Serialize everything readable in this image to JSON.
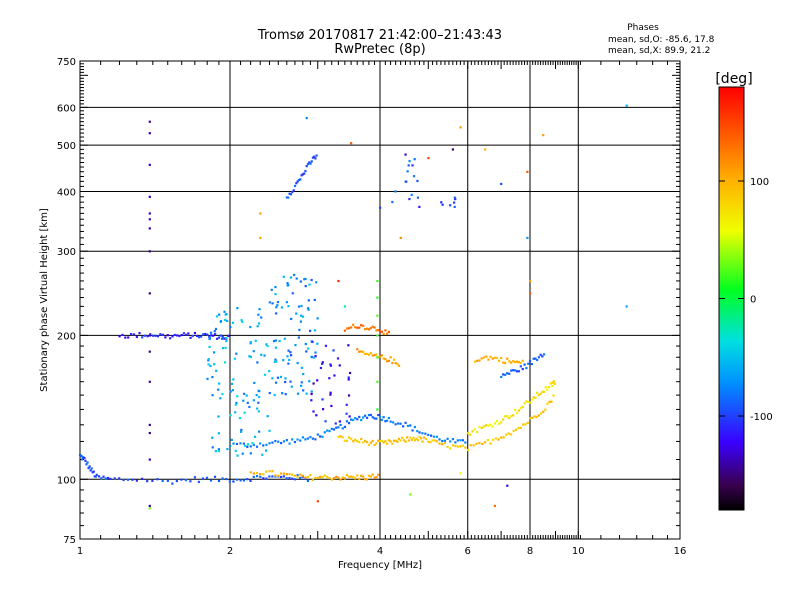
{
  "chart_data": {
    "type": "scatter",
    "title": "Tromsø 20170817 21:42:00–21:43:43",
    "subtitle": "RwPretec (8p)",
    "xlabel": "Frequency [MHz]",
    "ylabel": "Stationary phase Virtual Height [km]",
    "x_scale": "log",
    "y_scale": "log",
    "xlim": [
      1,
      16
    ],
    "ylim": [
      75,
      750
    ],
    "x_ticks": [
      1,
      2,
      4,
      6,
      8,
      10,
      16
    ],
    "y_ticks": [
      75,
      100,
      200,
      300,
      400,
      500,
      600,
      750
    ],
    "grid": true,
    "phase_stats": {
      "title": "Phases",
      "o_line": "mean, sd,O: -85.6, 17.8",
      "x_line": "mean, sd,X:  89.9, 21.2"
    },
    "colorbar": {
      "label": "[deg]",
      "range": [
        -180,
        180
      ],
      "ticks": [
        100,
        0,
        -100
      ],
      "colormap": "rainbow"
    },
    "traces": [
      {
        "f": [
          1.0,
          1.02,
          1.05,
          1.08,
          1.15,
          1.3,
          1.5,
          1.7,
          1.9,
          2.1,
          2.3,
          2.5,
          2.7,
          2.9
        ],
        "h": [
          112,
          110,
          105,
          101,
          100,
          100,
          99,
          100,
          100,
          100,
          101,
          101,
          101,
          100
        ],
        "phase": -95
      },
      {
        "f": [
          1.2,
          1.3,
          1.4,
          1.5,
          1.6,
          1.7,
          1.8,
          1.9,
          2.0
        ],
        "h": [
          200,
          200,
          201,
          199,
          200,
          200,
          200,
          199,
          198
        ],
        "phase": -110
      },
      {
        "f": [
          2.0,
          2.2,
          2.4,
          2.6,
          2.8,
          3.0,
          3.2,
          3.4,
          3.6,
          3.8,
          4.0,
          4.2,
          4.5,
          4.8,
          5.2,
          5.6,
          6.0
        ],
        "h": [
          118,
          118,
          119,
          120,
          121,
          123,
          126,
          130,
          134,
          136,
          135,
          133,
          130,
          126,
          122,
          120,
          119
        ],
        "phase": -80
      },
      {
        "f": [
          2.2,
          2.4,
          2.6,
          2.8,
          3.0,
          3.2,
          3.4,
          3.6,
          3.8,
          4.0
        ],
        "h": [
          104,
          103,
          102,
          101,
          101,
          101,
          101,
          101,
          101,
          102
        ],
        "phase": 100
      },
      {
        "f": [
          3.3,
          3.5,
          3.7,
          3.9,
          4.1,
          4.3,
          4.5,
          4.7,
          4.9,
          5.2,
          5.6,
          6.0,
          6.5,
          7.0,
          7.5,
          8.0,
          8.5,
          9.0
        ],
        "h": [
          122,
          121,
          120,
          119,
          119,
          120,
          121,
          122,
          121,
          119,
          117,
          116,
          119,
          123,
          127,
          133,
          140,
          150
        ],
        "phase": 90
      },
      {
        "f": [
          6.0,
          6.4,
          6.8,
          7.2,
          7.6,
          8.0,
          8.4,
          8.8,
          9.0
        ],
        "h": [
          125,
          128,
          131,
          135,
          140,
          146,
          152,
          157,
          160
        ],
        "phase": 75
      },
      {
        "f": [
          3.4,
          3.6,
          3.8,
          4.0,
          4.2
        ],
        "h": [
          205,
          210,
          208,
          206,
          200
        ],
        "phase": 130
      },
      {
        "f": [
          3.6,
          3.8,
          4.0,
          4.2,
          4.4
        ],
        "h": [
          185,
          182,
          180,
          178,
          172
        ],
        "phase": 105
      },
      {
        "f": [
          6.2,
          6.6,
          7.0,
          7.4,
          7.8
        ],
        "h": [
          178,
          180,
          178,
          176,
          175
        ],
        "phase": 100
      },
      {
        "f": [
          7.0,
          7.4,
          7.8,
          8.2,
          8.6
        ],
        "h": [
          165,
          168,
          172,
          178,
          185
        ],
        "phase": -90
      },
      {
        "f": [
          2.6,
          2.7,
          2.8,
          2.9,
          3.0
        ],
        "h": [
          390,
          410,
          435,
          460,
          480
        ],
        "phase": -95
      }
    ],
    "scatter_clusters": [
      {
        "f_range": [
          1.8,
          2.4
        ],
        "h_range": [
          112,
          230
        ],
        "phase": -60,
        "n": 110
      },
      {
        "f_range": [
          2.4,
          3.0
        ],
        "h_range": [
          150,
          270
        ],
        "phase": -70,
        "n": 90
      },
      {
        "f_range": [
          2.9,
          3.5
        ],
        "h_range": [
          130,
          195
        ],
        "phase": -115,
        "n": 35
      },
      {
        "f_range": [
          4.2,
          4.9
        ],
        "h_range": [
          370,
          470
        ],
        "phase": -95,
        "n": 15
      },
      {
        "f_range": [
          5.3,
          5.7
        ],
        "h_range": [
          370,
          390
        ],
        "phase": -100,
        "n": 8
      }
    ],
    "vertical_traces": [
      {
        "f": 1.38,
        "h_values": [
          560,
          530,
          455,
          390,
          360,
          350,
          335,
          300,
          245,
          200,
          185,
          160,
          130,
          125,
          110,
          88
        ],
        "phase": -140
      },
      {
        "f": 3.95,
        "h_values": [
          260,
          240,
          220,
          200,
          180,
          160,
          140
        ],
        "phase": 20
      }
    ],
    "isolated_points": [
      {
        "f": 2.85,
        "h": 570,
        "phase": -75
      },
      {
        "f": 3.5,
        "h": 505,
        "phase": 140
      },
      {
        "f": 4.5,
        "h": 478,
        "phase": -130
      },
      {
        "f": 5.0,
        "h": 470,
        "phase": 150
      },
      {
        "f": 5.8,
        "h": 545,
        "phase": 110
      },
      {
        "f": 5.6,
        "h": 490,
        "phase": -150
      },
      {
        "f": 6.5,
        "h": 490,
        "phase": 100
      },
      {
        "f": 8.5,
        "h": 525,
        "phase": 110
      },
      {
        "f": 7.9,
        "h": 440,
        "phase": 140
      },
      {
        "f": 7.0,
        "h": 415,
        "phase": -95
      },
      {
        "f": 7.9,
        "h": 320,
        "phase": -70
      },
      {
        "f": 4.0,
        "h": 370,
        "phase": -100
      },
      {
        "f": 4.4,
        "h": 320,
        "phase": 120
      },
      {
        "f": 2.3,
        "h": 360,
        "phase": 110
      },
      {
        "f": 2.3,
        "h": 320,
        "phase": 110
      },
      {
        "f": 12.5,
        "h": 605,
        "phase": -60
      },
      {
        "f": 12.5,
        "h": 230,
        "phase": -65
      },
      {
        "f": 3.3,
        "h": 260,
        "phase": 160
      },
      {
        "f": 3.4,
        "h": 230,
        "phase": -20
      },
      {
        "f": 4.6,
        "h": 93,
        "phase": 30
      },
      {
        "f": 6.8,
        "h": 88,
        "phase": 130
      },
      {
        "f": 5.8,
        "h": 103,
        "phase": 60
      },
      {
        "f": 7.2,
        "h": 97,
        "phase": -120
      },
      {
        "f": 1.38,
        "h": 87,
        "phase": 30
      },
      {
        "f": 3.0,
        "h": 90,
        "phase": 150
      },
      {
        "f": 8.0,
        "h": 245,
        "phase": 140
      },
      {
        "f": 8.0,
        "h": 260,
        "phase": 110
      }
    ]
  }
}
